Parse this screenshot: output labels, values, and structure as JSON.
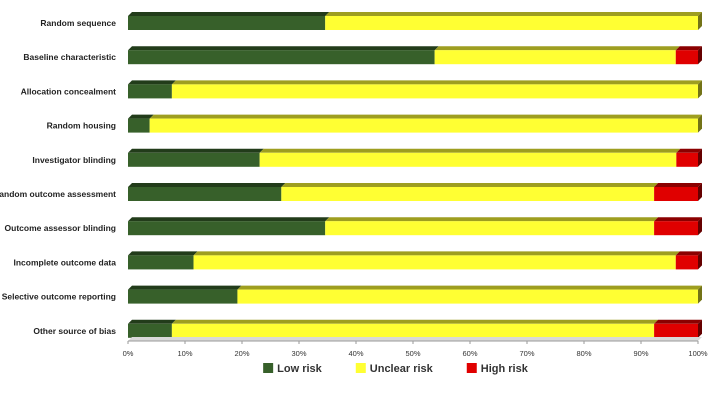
{
  "chart_data": {
    "type": "bar",
    "orientation": "horizontal",
    "stacked": true,
    "percent_stacked": true,
    "title": "",
    "xlabel": "",
    "ylabel": "",
    "xlim": [
      0,
      100
    ],
    "x_tick_labels": [
      "0%",
      "10%",
      "20%",
      "30%",
      "40%",
      "50%",
      "60%",
      "70%",
      "80%",
      "90%",
      "100%"
    ],
    "categories": [
      "Random sequence",
      "Baseline characteristic",
      "Allocation concealment",
      "Random housing",
      "Investigator blinding",
      "Random outcome assessment",
      "Outcome assessor blinding",
      "Incomplete outcome data",
      "Selective outcome reporting",
      "Other source of bias"
    ],
    "series": [
      {
        "name": "Low risk",
        "color": "#37602a",
        "values": [
          34.6,
          53.8,
          7.7,
          3.8,
          23.1,
          26.9,
          34.6,
          11.5,
          19.2,
          7.7
        ]
      },
      {
        "name": "Unclear risk",
        "color": "#ffff33",
        "values": [
          65.4,
          42.3,
          92.3,
          96.2,
          73.1,
          65.4,
          57.7,
          84.6,
          80.8,
          84.6
        ]
      },
      {
        "name": "High risk",
        "color": "#e00000",
        "values": [
          0,
          3.9,
          0,
          0,
          3.8,
          7.7,
          7.7,
          3.9,
          0,
          7.7
        ]
      }
    ],
    "grid": false,
    "legend_position": "bottom"
  }
}
